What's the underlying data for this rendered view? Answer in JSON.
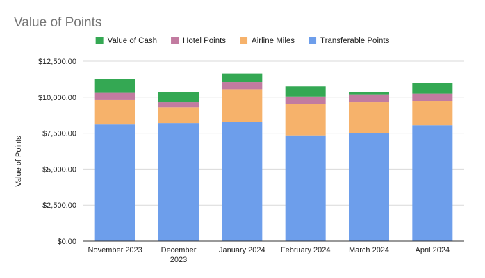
{
  "chart_data": {
    "type": "bar",
    "stacked": true,
    "title": "Value of Points",
    "ylabel": "Value of Points",
    "xlabel": "",
    "categories": [
      "November 2023",
      "December 2023",
      "January 2024",
      "February 2024",
      "March 2024",
      "April 2024"
    ],
    "series": [
      {
        "name": "Transferable Points",
        "color": "#6d9eeb",
        "values": [
          8100,
          8200,
          8300,
          7350,
          7500,
          8050
        ]
      },
      {
        "name": "Airline Miles",
        "color": "#f6b26b",
        "values": [
          1700,
          1100,
          2250,
          2200,
          2150,
          1650
        ]
      },
      {
        "name": "Hotel Points",
        "color": "#c27ba0",
        "values": [
          500,
          350,
          500,
          500,
          550,
          550
        ]
      },
      {
        "name": "Value of Cash",
        "color": "#34a853",
        "values": [
          950,
          700,
          600,
          700,
          150,
          750
        ]
      }
    ],
    "legend_order": [
      "Value of Cash",
      "Hotel Points",
      "Airline Miles",
      "Transferable Points"
    ],
    "legend_position": "top",
    "ylim": [
      0,
      12500
    ],
    "yticks": [
      0,
      2500,
      5000,
      7500,
      10000,
      12500
    ],
    "ytick_labels": [
      "$0.00",
      "$2,500.00",
      "$5,000.00",
      "$7,500.00",
      "$10,000.00",
      "$12,500.00"
    ],
    "grid": true
  }
}
